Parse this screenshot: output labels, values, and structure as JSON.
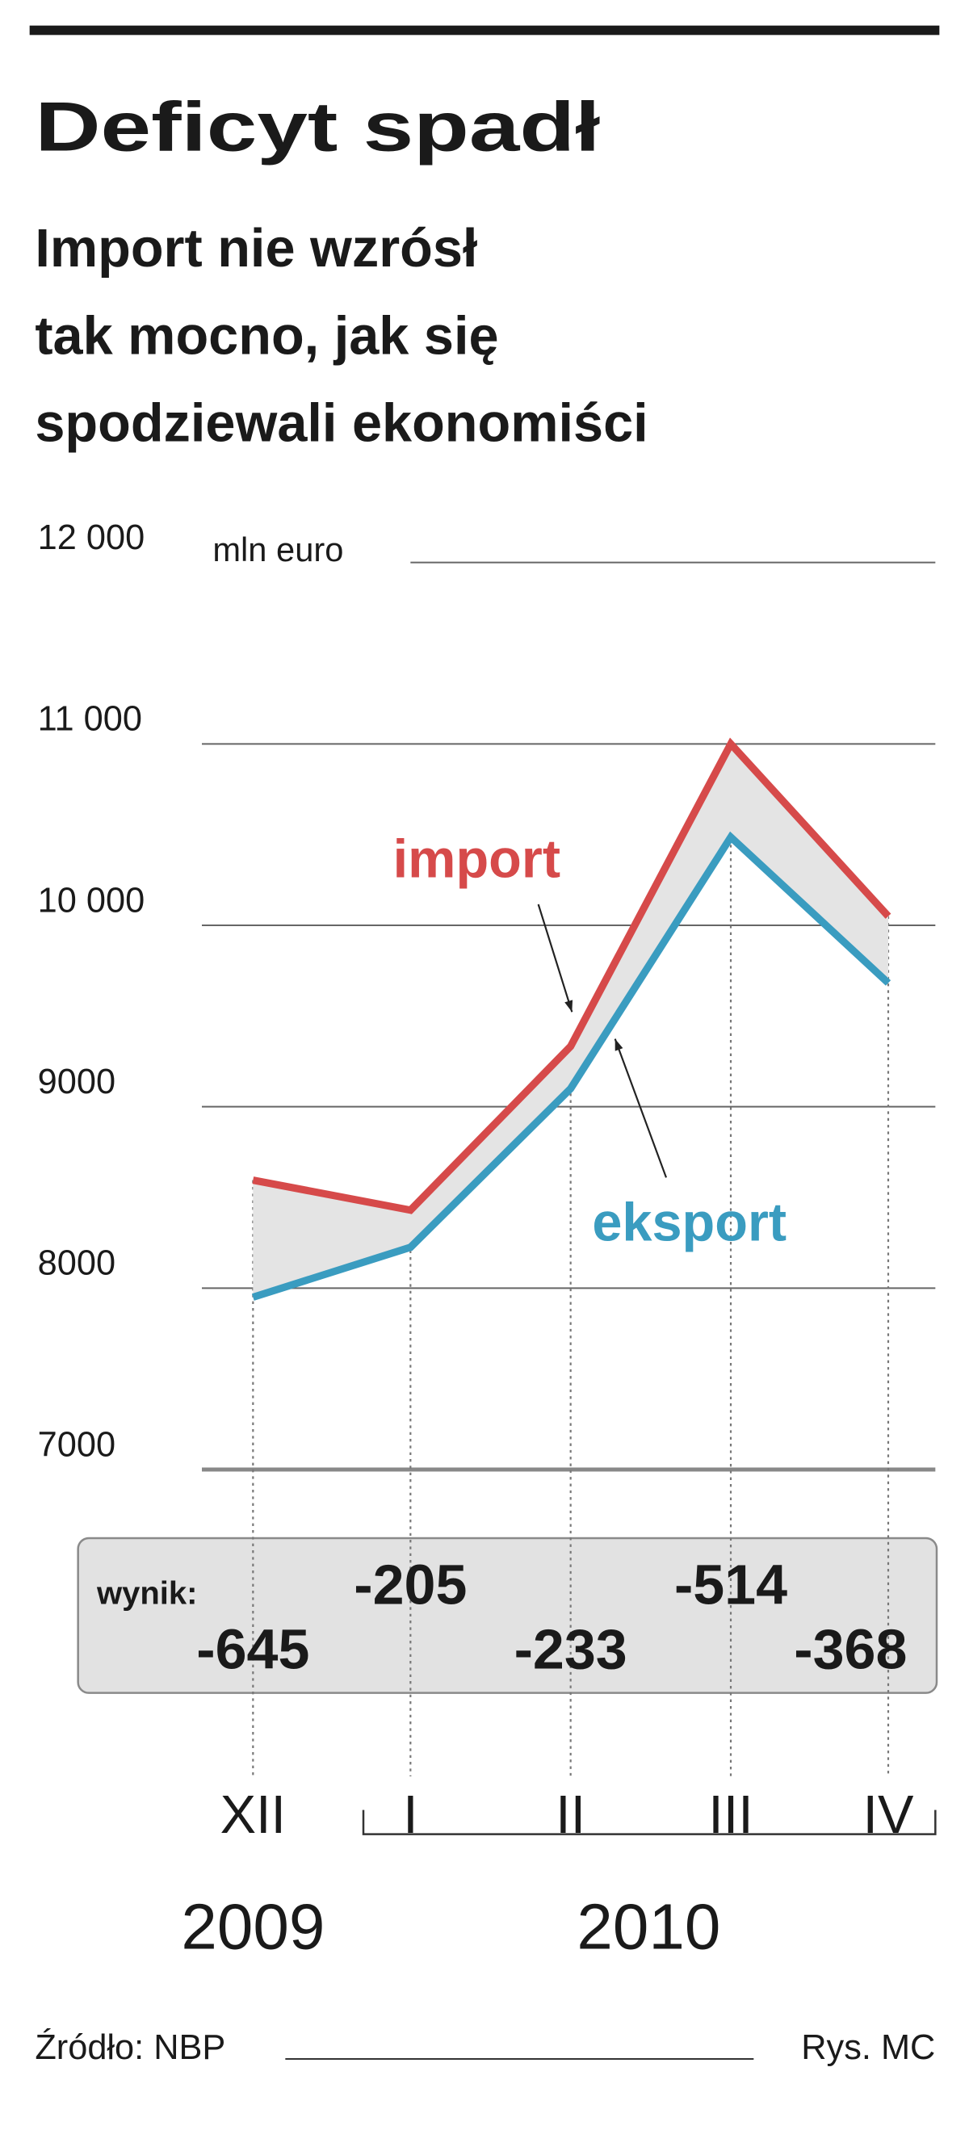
{
  "chart_data": {
    "type": "line",
    "title": "Deficyt spadł",
    "subtitle": [
      "Import nie wzrósł",
      "tak mocno, jak się",
      "spodziewali ekonomiści"
    ],
    "unit_label": "mln euro",
    "categories": [
      "XII",
      "I",
      "II",
      "III",
      "IV"
    ],
    "year_labels": [
      "2009",
      "2010"
    ],
    "series": [
      {
        "name": "import",
        "color": "#d64a4a",
        "values": [
          8595,
          8430,
          9333,
          11000,
          10050
        ]
      },
      {
        "name": "eksport",
        "color": "#3a9cc0",
        "values": [
          7950,
          8225,
          9100,
          10486,
          9682
        ]
      }
    ],
    "result": {
      "label": "wynik:",
      "values": [
        -645,
        -205,
        -233,
        -514,
        -368
      ]
    },
    "ylim": [
      7000,
      12000
    ],
    "yticks": [
      7000,
      8000,
      9000,
      {
        "value": 10000,
        "label": "10 000"
      },
      {
        "value": 11000,
        "label": "11 000"
      },
      {
        "value": 12000,
        "label": "12 000"
      }
    ],
    "grid": true,
    "source": "Źródło: NBP",
    "credit": "Rys. MC"
  }
}
